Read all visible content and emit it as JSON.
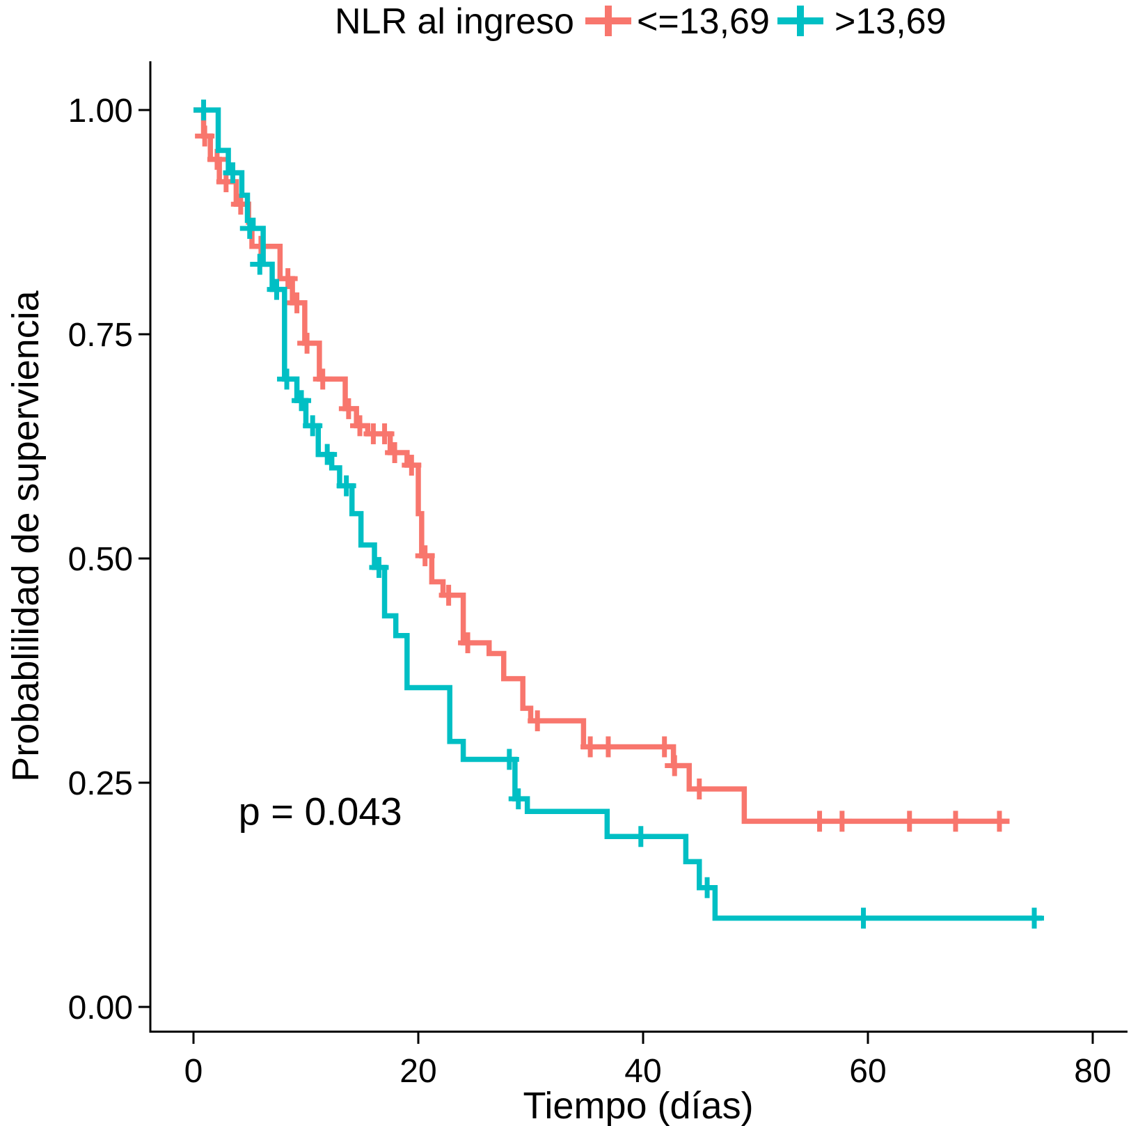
{
  "chart_data": {
    "type": "line",
    "subtype": "kaplan-meier-step",
    "title": "",
    "legend_title": "NLR al ingreso",
    "legend_position": "top",
    "xlabel": "Tiempo (días)",
    "ylabel": "Probablilidad de superviencia",
    "xticks": [
      0,
      20,
      40,
      60,
      80
    ],
    "yticks": [
      0.0,
      0.25,
      0.5,
      0.75,
      1.0
    ],
    "ytick_labels": [
      "0.00",
      "0.25",
      "0.50",
      "0.75",
      "1.00"
    ],
    "xlim": [
      0,
      80
    ],
    "ylim": [
      0,
      1
    ],
    "grid": false,
    "annotation": {
      "text": "p = 0.043",
      "day": 4,
      "prob": 0.203
    },
    "series": [
      {
        "name": "<=13,69",
        "color": "#F8766D",
        "end_time": 72.6,
        "steps": [
          [
            0,
            1.0
          ],
          [
            0.9,
            0.971
          ],
          [
            1.5,
            0.945
          ],
          [
            2.3,
            0.92
          ],
          [
            3.8,
            0.895
          ],
          [
            4.9,
            0.875
          ],
          [
            5.2,
            0.848
          ],
          [
            7.7,
            0.812
          ],
          [
            8.8,
            0.785
          ],
          [
            9.9,
            0.74
          ],
          [
            11.2,
            0.7
          ],
          [
            13.5,
            0.667
          ],
          [
            14.5,
            0.648
          ],
          [
            15.5,
            0.639
          ],
          [
            17.5,
            0.618
          ],
          [
            19.0,
            0.604
          ],
          [
            20.0,
            0.55
          ],
          [
            20.3,
            0.503
          ],
          [
            21.2,
            0.474
          ],
          [
            22.2,
            0.459
          ],
          [
            24.0,
            0.406
          ],
          [
            26.3,
            0.394
          ],
          [
            27.6,
            0.366
          ],
          [
            29.3,
            0.333
          ],
          [
            30.0,
            0.319
          ],
          [
            34.7,
            0.29
          ],
          [
            42.7,
            0.269
          ],
          [
            44.1,
            0.243
          ],
          [
            49.0,
            0.207
          ]
        ],
        "censors": [
          [
            1.0,
            0.971
          ],
          [
            2.1,
            0.945
          ],
          [
            2.9,
            0.92
          ],
          [
            4.2,
            0.895
          ],
          [
            6.0,
            0.848
          ],
          [
            8.4,
            0.812
          ],
          [
            9.2,
            0.785
          ],
          [
            10.1,
            0.74
          ],
          [
            11.5,
            0.7
          ],
          [
            13.8,
            0.667
          ],
          [
            14.8,
            0.648
          ],
          [
            16.0,
            0.639
          ],
          [
            17.0,
            0.639
          ],
          [
            17.9,
            0.618
          ],
          [
            19.4,
            0.604
          ],
          [
            20.6,
            0.503
          ],
          [
            22.7,
            0.459
          ],
          [
            24.4,
            0.406
          ],
          [
            30.6,
            0.319
          ],
          [
            35.3,
            0.29
          ],
          [
            36.9,
            0.29
          ],
          [
            41.9,
            0.29
          ],
          [
            42.8,
            0.269
          ],
          [
            45.0,
            0.243
          ],
          [
            55.7,
            0.207
          ],
          [
            57.7,
            0.207
          ],
          [
            63.7,
            0.207
          ],
          [
            67.8,
            0.207
          ],
          [
            71.7,
            0.207
          ]
        ]
      },
      {
        "name": ">13,69",
        "color": "#00BFC4",
        "end_time": 75.5,
        "steps": [
          [
            0,
            1.0
          ],
          [
            2.2,
            0.955
          ],
          [
            3.1,
            0.93
          ],
          [
            4.3,
            0.905
          ],
          [
            4.8,
            0.877
          ],
          [
            5.3,
            0.868
          ],
          [
            6.2,
            0.828
          ],
          [
            7.0,
            0.8
          ],
          [
            8.1,
            0.7
          ],
          [
            9.2,
            0.676
          ],
          [
            10.0,
            0.648
          ],
          [
            11.1,
            0.616
          ],
          [
            12.3,
            0.601
          ],
          [
            13.0,
            0.581
          ],
          [
            14.1,
            0.55
          ],
          [
            14.9,
            0.515
          ],
          [
            16.1,
            0.49
          ],
          [
            17.0,
            0.436
          ],
          [
            18.0,
            0.414
          ],
          [
            19.0,
            0.356
          ],
          [
            22.8,
            0.296
          ],
          [
            24.0,
            0.276
          ],
          [
            28.6,
            0.232
          ],
          [
            29.7,
            0.218
          ],
          [
            36.8,
            0.19
          ],
          [
            43.8,
            0.162
          ],
          [
            45.0,
            0.133
          ],
          [
            46.4,
            0.099
          ]
        ],
        "censors": [
          [
            0.9,
            1.0
          ],
          [
            3.5,
            0.93
          ],
          [
            5.0,
            0.868
          ],
          [
            5.9,
            0.828
          ],
          [
            7.4,
            0.8
          ],
          [
            8.3,
            0.7
          ],
          [
            9.6,
            0.676
          ],
          [
            10.6,
            0.648
          ],
          [
            11.9,
            0.616
          ],
          [
            13.6,
            0.581
          ],
          [
            16.5,
            0.49
          ],
          [
            28.1,
            0.276
          ],
          [
            28.9,
            0.232
          ],
          [
            39.8,
            0.19
          ],
          [
            45.7,
            0.133
          ],
          [
            59.6,
            0.099
          ],
          [
            74.8,
            0.099
          ]
        ]
      }
    ]
  }
}
